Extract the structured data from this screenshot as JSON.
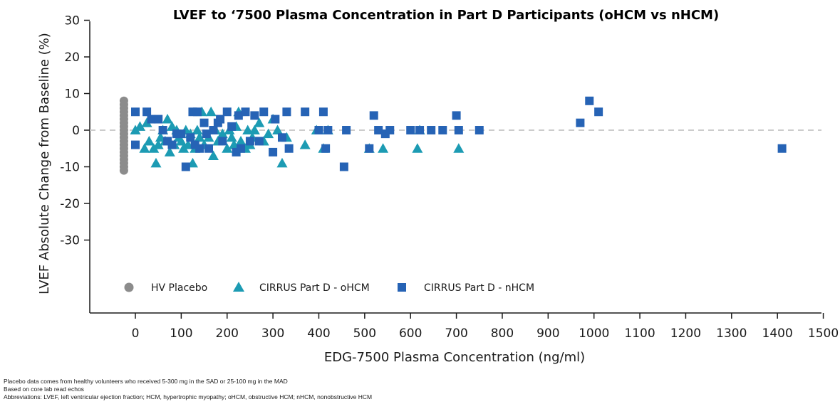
{
  "chart_data": {
    "type": "scatter",
    "title": "LVEF to ‘7500 Plasma Concentration in Part D Participants (oHCM vs nHCM)",
    "xlabel": "EDG-7500 Plasma Concentration (ng/ml)",
    "ylabel": "LVEF Absolute Change from Baseline (%)",
    "xlim": [
      0,
      1500
    ],
    "ylim": [
      -30,
      30
    ],
    "x_ticks": [
      "0",
      "100",
      "200",
      "300",
      "400",
      "500",
      "600",
      "700",
      "800",
      "900",
      "1000",
      "1100",
      "1200",
      "1300",
      "1400",
      "1500"
    ],
    "y_ticks": [
      "30",
      "20",
      "10",
      "0",
      "-10",
      "-20",
      "-30"
    ],
    "reference_line": {
      "y": 0,
      "style": "dashed",
      "color": "#cccccc"
    },
    "legend_position": "bottom-left",
    "series": [
      {
        "name": "HV Placebo",
        "marker": "circle",
        "color": "#8c8c8c",
        "x": [
          -25,
          -25,
          -25,
          -25,
          -25,
          -25,
          -25,
          -25,
          -25,
          -25,
          -25,
          -25,
          -25,
          -25,
          -25,
          -25,
          -25,
          -25,
          -25,
          -25
        ],
        "y": [
          8,
          7,
          6,
          5,
          4,
          3,
          2,
          1,
          0,
          -1,
          -2,
          -3,
          -4,
          -5,
          -6,
          -7,
          -8,
          -9,
          -10,
          -11
        ]
      },
      {
        "name": "CIRRUS Part D - oHCM",
        "marker": "triangle",
        "color": "#1c9bb3",
        "x": [
          0,
          10,
          20,
          25,
          30,
          40,
          45,
          50,
          55,
          60,
          65,
          70,
          75,
          80,
          85,
          90,
          95,
          100,
          105,
          110,
          115,
          120,
          125,
          130,
          135,
          140,
          145,
          150,
          160,
          165,
          170,
          175,
          180,
          190,
          200,
          205,
          210,
          215,
          220,
          225,
          230,
          240,
          245,
          250,
          255,
          260,
          270,
          280,
          290,
          300,
          310,
          320,
          330,
          370,
          395,
          410,
          420,
          510,
          540,
          615,
          620,
          705
        ],
        "y": [
          0,
          1,
          -5,
          2,
          -3,
          -5,
          -9,
          -4,
          -2,
          0,
          -3,
          3,
          -6,
          1,
          -4,
          0,
          -2,
          -3,
          -5,
          0,
          -4,
          -1,
          -9,
          -5,
          0,
          -2,
          5,
          -4,
          -2,
          5,
          -7,
          0,
          -3,
          -1,
          -5,
          0,
          -2,
          -4,
          1,
          5,
          -3,
          -5,
          0,
          -4,
          -2,
          0,
          2,
          -3,
          -1,
          3,
          0,
          -9,
          -2,
          -4,
          0,
          -5,
          0,
          -5,
          -5,
          -5,
          0,
          -5
        ]
      },
      {
        "name": "CIRRUS Part D - nHCM",
        "marker": "square",
        "color": "#2663b5",
        "x": [
          0,
          0,
          25,
          35,
          50,
          60,
          70,
          80,
          90,
          100,
          110,
          120,
          125,
          130,
          135,
          140,
          150,
          155,
          160,
          170,
          180,
          185,
          190,
          200,
          210,
          220,
          225,
          230,
          240,
          250,
          260,
          270,
          280,
          300,
          305,
          320,
          330,
          335,
          370,
          400,
          410,
          415,
          420,
          455,
          460,
          510,
          520,
          530,
          545,
          555,
          600,
          620,
          645,
          670,
          700,
          705,
          750,
          970,
          990,
          1010,
          1410
        ],
        "y": [
          5,
          -4,
          5,
          3,
          3,
          0,
          -3,
          -4,
          -1,
          -1,
          -10,
          -2,
          5,
          -4,
          5,
          -5,
          2,
          -1,
          -5,
          0,
          2,
          3,
          -3,
          5,
          1,
          -6,
          4,
          -5,
          5,
          -3,
          4,
          -3,
          5,
          -6,
          3,
          -2,
          5,
          -5,
          5,
          0,
          5,
          -5,
          0,
          -10,
          0,
          -5,
          4,
          0,
          -1,
          0,
          0,
          0,
          0,
          0,
          4,
          0,
          0,
          2,
          8,
          5,
          -5
        ]
      }
    ]
  },
  "footnotes": {
    "line1": "Placebo data comes from healthy volunteers who received 5-300 mg in the SAD or 25-100 mg in the MAD",
    "line2": "Based on core lab read echos",
    "line3": "Abbreviations: LVEF, left ventricular ejection fraction; HCM, hypertrophic myopathy; oHCM, obstructive HCM; nHCM, nonobstructive HCM"
  }
}
